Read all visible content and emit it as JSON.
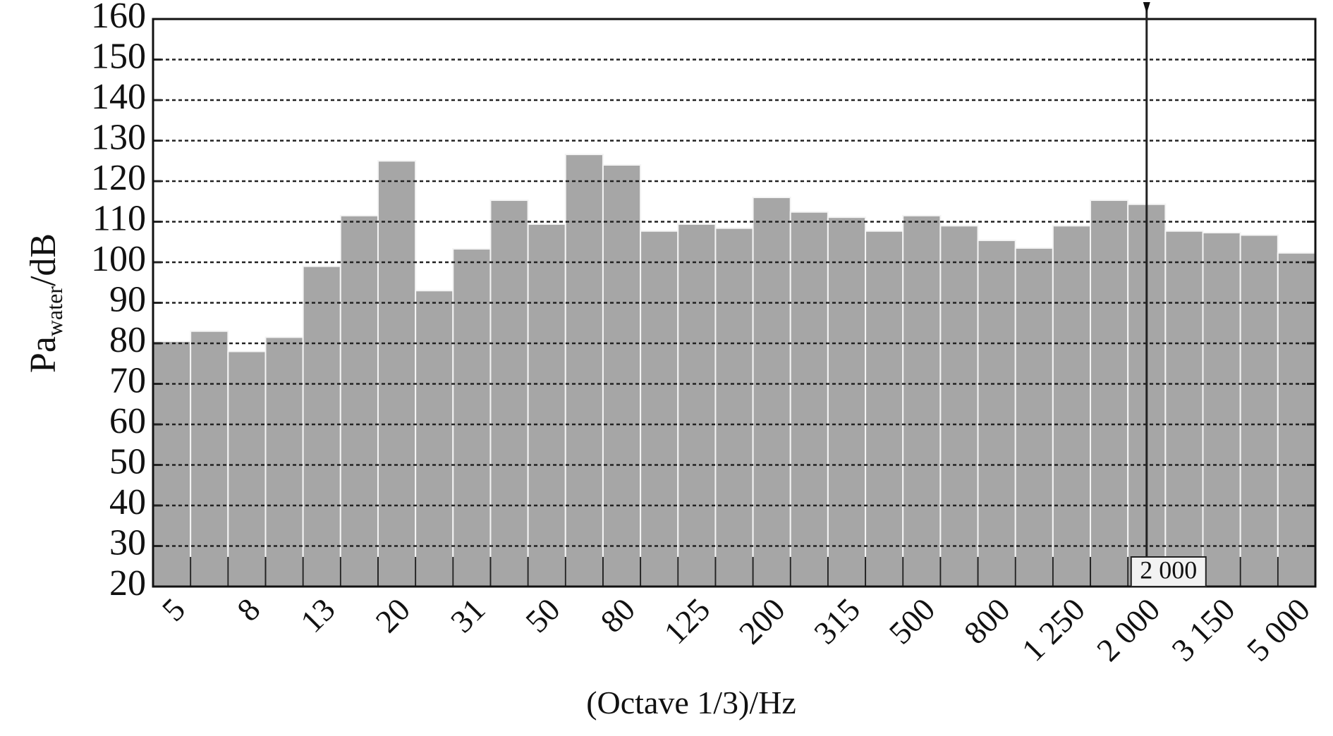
{
  "chart_data": {
    "type": "bar",
    "x_label": "(Octave 1/3)/Hz",
    "y_label": {
      "text": "Pa",
      "sub": "water",
      "suffix": "/dB"
    },
    "categories": [
      "5",
      null,
      "8",
      null,
      "13",
      null,
      "20",
      null,
      "31",
      null,
      "50",
      null,
      "80",
      null,
      "125",
      null,
      "200",
      null,
      "315",
      null,
      "500",
      null,
      "800",
      null,
      "1 250",
      null,
      "2 000",
      null,
      "3 150",
      null,
      "5 000"
    ],
    "values": [
      80.5,
      83,
      78,
      81.5,
      99,
      111.5,
      125,
      93,
      103.3,
      115.3,
      109.4,
      126.6,
      124,
      107.7,
      109.4,
      108.4,
      116,
      112.4,
      111.1,
      107.7,
      111.5,
      109,
      105.4,
      103.5,
      109,
      115.3,
      114.3,
      107.7,
      107.3,
      106.7,
      102.3
    ],
    "color": "#a6a6a6",
    "ylim": [
      20,
      160
    ],
    "yticks": [
      20,
      30,
      40,
      50,
      60,
      70,
      80,
      90,
      100,
      110,
      120,
      130,
      140,
      150,
      160
    ],
    "grid": true,
    "cursor": "2 000"
  }
}
